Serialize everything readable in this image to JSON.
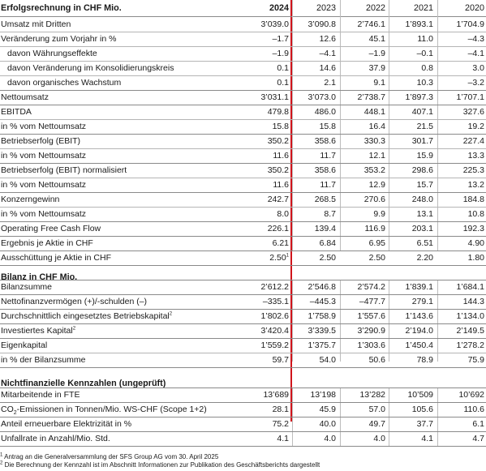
{
  "years": [
    "2024",
    "2023",
    "2022",
    "2021",
    "2020"
  ],
  "income": {
    "title": "Erfolgsrechnung in CHF Mio.",
    "rows": [
      {
        "label": "Umsatz mit Dritten",
        "values": [
          "3’039.0",
          "3’090.8",
          "2’746.1",
          "1’893.1",
          "1’704.9"
        ]
      },
      {
        "label": "Veränderung zum Vorjahr in %",
        "values": [
          "–1.7",
          "12.6",
          "45.1",
          "11.0",
          "–4.3"
        ]
      },
      {
        "label": "davon Währungseffekte",
        "values": [
          "–1.9",
          "–4.1",
          "–1.9",
          "–0.1",
          "–4.1"
        ]
      },
      {
        "label": "davon Veränderung im Konsolidierungskreis",
        "values": [
          "0.1",
          "14.6",
          "37.9",
          "0.8",
          "3.0"
        ]
      },
      {
        "label": "davon organisches Wachstum",
        "values": [
          "0.1",
          "2.1",
          "9.1",
          "10.3",
          "–3.2"
        ]
      },
      {
        "label": "Nettoumsatz",
        "values": [
          "3’031.1",
          "3’073.0",
          "2’738.7",
          "1’897.3",
          "1’707.1"
        ]
      },
      {
        "label": "EBITDA",
        "values": [
          "479.8",
          "486.0",
          "448.1",
          "407.1",
          "327.6"
        ]
      },
      {
        "label": "in % vom Nettoumsatz",
        "values": [
          "15.8",
          "15.8",
          "16.4",
          "21.5",
          "19.2"
        ]
      },
      {
        "label": "Betriebserfolg (EBIT)",
        "values": [
          "350.2",
          "358.6",
          "330.3",
          "301.7",
          "227.4"
        ]
      },
      {
        "label": "in % vom Nettoumsatz",
        "values": [
          "11.6",
          "11.7",
          "12.1",
          "15.9",
          "13.3"
        ]
      },
      {
        "label": "Betriebserfolg (EBIT) normalisiert",
        "values": [
          "350.2",
          "358.6",
          "353.2",
          "298.6",
          "225.3"
        ]
      },
      {
        "label": "in % vom Nettoumsatz",
        "values": [
          "11.6",
          "11.7",
          "12.9",
          "15.7",
          "13.2"
        ]
      },
      {
        "label": "Konzerngewinn",
        "values": [
          "242.7",
          "268.5",
          "270.6",
          "248.0",
          "184.8"
        ]
      },
      {
        "label": "in % vom Nettoumsatz",
        "values": [
          "8.0",
          "8.7",
          "9.9",
          "13.1",
          "10.8"
        ]
      },
      {
        "label": "Operating Free Cash Flow",
        "values": [
          "226.1",
          "139.4",
          "116.9",
          "203.1",
          "192.3"
        ]
      },
      {
        "label": "Ergebnis je Aktie in CHF",
        "values": [
          "6.21",
          "6.84",
          "6.95",
          "6.51",
          "4.90"
        ]
      },
      {
        "label": "Ausschüttung je Aktie in CHF",
        "values": [
          "2.50",
          "2.50",
          "2.50",
          "2.20",
          "1.80"
        ],
        "first_note": "1"
      }
    ]
  },
  "balance": {
    "title": "Bilanz in CHF Mio.",
    "rows": [
      {
        "label": "Bilanzsumme",
        "values": [
          "2’612.2",
          "2’546.8",
          "2’574.2",
          "1’839.1",
          "1’684.1"
        ]
      },
      {
        "label": "Nettofinanzvermögen (+)/-schulden (–)",
        "values": [
          "–335.1",
          "–445.3",
          "–477.7",
          "279.1",
          "144.3"
        ]
      },
      {
        "label": "Durchschnittlich eingesetztes Betriebskapital",
        "label_note": "2",
        "values": [
          "1’802.6",
          "1’758.9",
          "1’557.6",
          "1’143.6",
          "1’134.0"
        ]
      },
      {
        "label": "Investiertes Kapital",
        "label_note": "2",
        "values": [
          "3’420.4",
          "3’339.5",
          "3’290.9",
          "2’194.0",
          "2’149.5"
        ]
      },
      {
        "label": "Eigenkapital",
        "values": [
          "1’559.2",
          "1’375.7",
          "1’303.6",
          "1’450.4",
          "1’278.2"
        ]
      },
      {
        "label": "in % der Bilanzsumme",
        "values": [
          "59.7",
          "54.0",
          "50.6",
          "78.9",
          "75.9"
        ]
      }
    ]
  },
  "nonfin": {
    "title": "Nichtfinanzielle Kennzahlen (ungeprüft)",
    "rows": [
      {
        "label": "Mitarbeitende in FTE",
        "values": [
          "13’689",
          "13’198",
          "13’282",
          "10’509",
          "10’692"
        ]
      },
      {
        "label_pre": "CO",
        "label_sub": "2",
        "label_post": "-Emissionen in Tonnen/Mio. WS-CHF (Scope 1+2)",
        "values": [
          "28.1",
          "45.9",
          "57.0",
          "105.6",
          "110.6"
        ]
      },
      {
        "label": "Anteil erneuerbare Elektrizität in %",
        "values": [
          "75.2",
          "40.0",
          "49.7",
          "37.7",
          "6.1"
        ]
      },
      {
        "label": "Unfallrate in Anzahl/Mio. Std.",
        "values": [
          "4.1",
          "4.0",
          "4.0",
          "4.1",
          "4.7"
        ]
      }
    ]
  },
  "footnotes": [
    {
      "mark": "1",
      "text": "Antrag an die Generalversammlung der SFS Group AG vom 30. April 2025"
    },
    {
      "mark": "2",
      "text": "Die Berechnung der Kennzahl ist im Abschnitt Informationen zur Publikation des Geschäftsberichts dargestellt"
    }
  ]
}
